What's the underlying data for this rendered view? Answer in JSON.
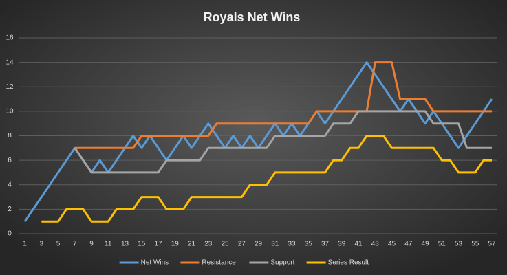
{
  "chart_data": {
    "type": "line",
    "title": "Royals Net Wins",
    "categories": [
      "1",
      null,
      "3",
      null,
      "5",
      null,
      "7",
      null,
      "9",
      null,
      "11",
      null,
      "13",
      null,
      "15",
      null,
      "17",
      null,
      "19",
      null,
      "21",
      null,
      "23",
      null,
      "25",
      null,
      "27",
      null,
      "29",
      null,
      "31",
      null,
      "33",
      null,
      "35",
      null,
      "37",
      null,
      "39",
      null,
      "41",
      null,
      "43",
      null,
      "45",
      null,
      "47",
      null,
      "49",
      null,
      "51",
      null,
      "53",
      null,
      "55",
      null,
      "57"
    ],
    "series": [
      {
        "name": "Net Wins",
        "color": "#5b9bd5",
        "values": [
          1,
          2,
          3,
          4,
          5,
          6,
          7,
          6,
          5,
          6,
          5,
          6,
          7,
          8,
          7,
          8,
          7,
          6,
          7,
          8,
          7,
          8,
          9,
          8,
          7,
          8,
          7,
          8,
          7,
          8,
          9,
          8,
          9,
          8,
          9,
          10,
          9,
          10,
          11,
          12,
          13,
          14,
          13,
          12,
          11,
          10,
          11,
          10,
          9,
          10,
          9,
          8,
          7,
          8,
          9,
          10,
          11
        ]
      },
      {
        "name": "Resistance",
        "color": "#ed7d31",
        "values": [
          null,
          null,
          null,
          null,
          null,
          null,
          7,
          7,
          7,
          7,
          7,
          7,
          7,
          7,
          8,
          8,
          8,
          8,
          8,
          8,
          8,
          8,
          8,
          9,
          9,
          9,
          9,
          9,
          9,
          9,
          9,
          9,
          9,
          9,
          9,
          10,
          10,
          10,
          10,
          10,
          10,
          10,
          14,
          14,
          14,
          11,
          11,
          11,
          11,
          10,
          10,
          10,
          10,
          10,
          10,
          10,
          10
        ]
      },
      {
        "name": "Support",
        "color": "#a5a5a5",
        "values": [
          null,
          null,
          null,
          null,
          null,
          null,
          7,
          6,
          5,
          5,
          5,
          5,
          5,
          5,
          5,
          5,
          5,
          6,
          6,
          6,
          6,
          6,
          7,
          7,
          7,
          7,
          7,
          7,
          7,
          7,
          8,
          8,
          8,
          8,
          8,
          8,
          8,
          9,
          9,
          9,
          10,
          10,
          10,
          10,
          10,
          10,
          10,
          10,
          10,
          9,
          9,
          9,
          9,
          7,
          7,
          7,
          7
        ]
      },
      {
        "name": "Series Result",
        "color": "#ffc000",
        "values": [
          null,
          null,
          1,
          1,
          1,
          2,
          2,
          2,
          1,
          1,
          1,
          2,
          2,
          2,
          3,
          3,
          3,
          2,
          2,
          2,
          3,
          3,
          3,
          3,
          3,
          3,
          3,
          4,
          4,
          4,
          5,
          5,
          5,
          5,
          5,
          5,
          5,
          6,
          6,
          7,
          7,
          8,
          8,
          8,
          7,
          7,
          7,
          7,
          7,
          7,
          6,
          6,
          5,
          5,
          5,
          6,
          6
        ]
      }
    ],
    "ylim": [
      0,
      16
    ],
    "yticks": [
      0,
      2,
      4,
      6,
      8,
      10,
      12,
      14,
      16
    ],
    "grid": true,
    "legend": "bottom"
  }
}
